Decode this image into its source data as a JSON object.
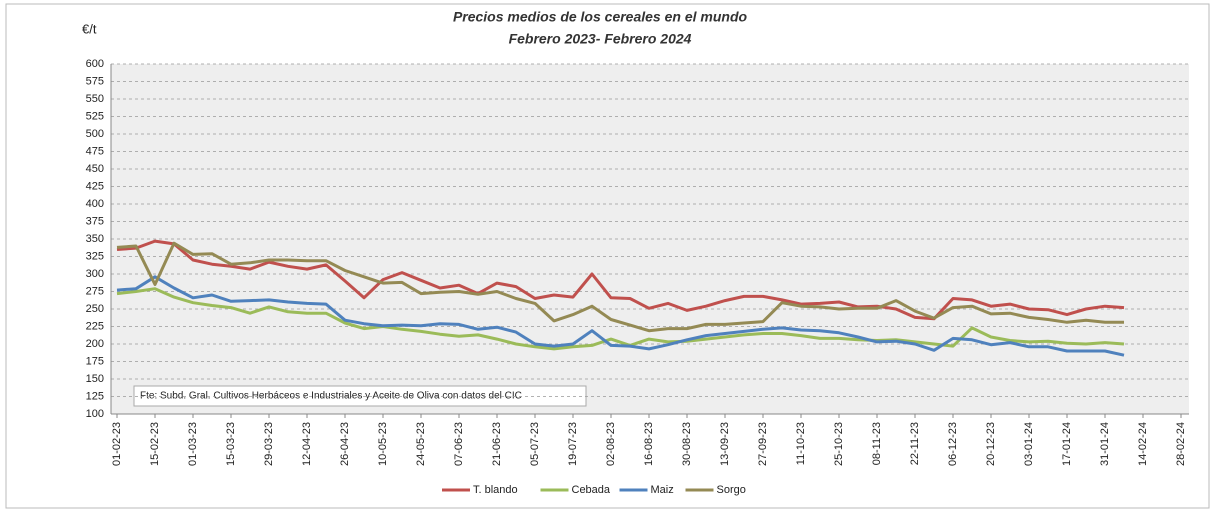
{
  "chart_data": {
    "type": "line",
    "title": "Precios medios de los cereales en el mundo",
    "subtitle": "Febrero 2023- Febrero 2024",
    "y_label": "€/t",
    "annotation": "Fte: Subd. Gral. Cultivos Herbáceos e Industriales y Aceite de Oliva con datos del CIC",
    "legend": "bottom",
    "grid": true,
    "x": [
      "01-02-23",
      "08-02-23",
      "15-02-23",
      "22-02-23",
      "01-03-23",
      "08-03-23",
      "15-03-23",
      "22-03-23",
      "29-03-23",
      "05-04-23",
      "12-04-23",
      "19-04-23",
      "26-04-23",
      "03-05-23",
      "10-05-23",
      "17-05-23",
      "24-05-23",
      "31-05-23",
      "07-06-23",
      "14-06-23",
      "21-06-23",
      "28-06-23",
      "05-07-23",
      "12-07-23",
      "19-07-23",
      "26-07-23",
      "02-08-23",
      "09-08-23",
      "16-08-23",
      "23-08-23",
      "30-08-23",
      "06-09-23",
      "13-09-23",
      "20-09-23",
      "27-09-23",
      "04-10-23",
      "11-10-23",
      "18-10-23",
      "25-10-23",
      "01-11-23",
      "08-11-23",
      "15-11-23",
      "22-11-23",
      "29-11-23",
      "06-12-23",
      "13-12-23",
      "20-12-23",
      "27-12-23",
      "03-01-24",
      "10-01-24",
      "17-01-24",
      "24-01-24",
      "31-01-24",
      "07-02-24"
    ],
    "xlim": [
      "01-02-23",
      "28-02-24"
    ],
    "xticks": [
      "01-02-23",
      "15-02-23",
      "01-03-23",
      "15-03-23",
      "29-03-23",
      "12-04-23",
      "26-04-23",
      "10-05-23",
      "24-05-23",
      "07-06-23",
      "21-06-23",
      "05-07-23",
      "19-07-23",
      "02-08-23",
      "16-08-23",
      "30-08-23",
      "13-09-23",
      "27-09-23",
      "11-10-23",
      "25-10-23",
      "08-11-23",
      "22-11-23",
      "06-12-23",
      "20-12-23",
      "03-01-24",
      "17-01-24",
      "31-01-24",
      "14-02-24",
      "28-02-24"
    ],
    "ylim": [
      100,
      600
    ],
    "yticks": [
      100,
      125,
      150,
      175,
      200,
      225,
      250,
      275,
      300,
      325,
      350,
      375,
      400,
      425,
      450,
      475,
      500,
      525,
      550,
      575,
      600
    ],
    "series": [
      {
        "name": "T. blando",
        "color": "#c0504d",
        "values": [
          335,
          337,
          347,
          343,
          320,
          314,
          311,
          307,
          317,
          311,
          307,
          313,
          290,
          266,
          292,
          302,
          291,
          280,
          284,
          272,
          287,
          282,
          265,
          270,
          267,
          300,
          266,
          265,
          251,
          258,
          248,
          254,
          262,
          268,
          268,
          263,
          257,
          258,
          260,
          253,
          254,
          250,
          238,
          236,
          265,
          263,
          254,
          257,
          250,
          249,
          242,
          250,
          254,
          252
        ]
      },
      {
        "name": "Cebada",
        "color": "#9bbb59",
        "values": [
          272,
          275,
          279,
          267,
          259,
          255,
          252,
          244,
          253,
          246,
          244,
          244,
          230,
          222,
          225,
          221,
          218,
          214,
          211,
          213,
          207,
          200,
          196,
          193,
          196,
          198,
          207,
          198,
          207,
          203,
          204,
          207,
          210,
          213,
          215,
          215,
          212,
          208,
          208,
          206,
          205,
          206,
          203,
          200,
          197,
          223,
          210,
          205,
          203,
          204,
          201,
          200,
          202,
          200
        ]
      },
      {
        "name": "Maiz",
        "color": "#4f81bd",
        "values": [
          277,
          279,
          296,
          280,
          266,
          270,
          261,
          262,
          263,
          260,
          258,
          257,
          234,
          229,
          226,
          227,
          226,
          229,
          228,
          221,
          224,
          217,
          200,
          197,
          200,
          219,
          198,
          197,
          193,
          199,
          206,
          212,
          215,
          218,
          221,
          223,
          220,
          219,
          216,
          210,
          203,
          204,
          200,
          191,
          208,
          206,
          199,
          202,
          196,
          196,
          190,
          190,
          190,
          184
        ]
      },
      {
        "name": "Sorgo",
        "color": "#948a54",
        "values": [
          338,
          340,
          285,
          344,
          328,
          329,
          314,
          316,
          320,
          320,
          319,
          319,
          305,
          296,
          287,
          288,
          272,
          274,
          275,
          271,
          275,
          265,
          258,
          233,
          242,
          254,
          235,
          227,
          219,
          222,
          222,
          228,
          228,
          230,
          232,
          259,
          254,
          253,
          250,
          251,
          251,
          262,
          247,
          237,
          252,
          254,
          243,
          244,
          238,
          235,
          231,
          234,
          231,
          231
        ]
      }
    ]
  }
}
